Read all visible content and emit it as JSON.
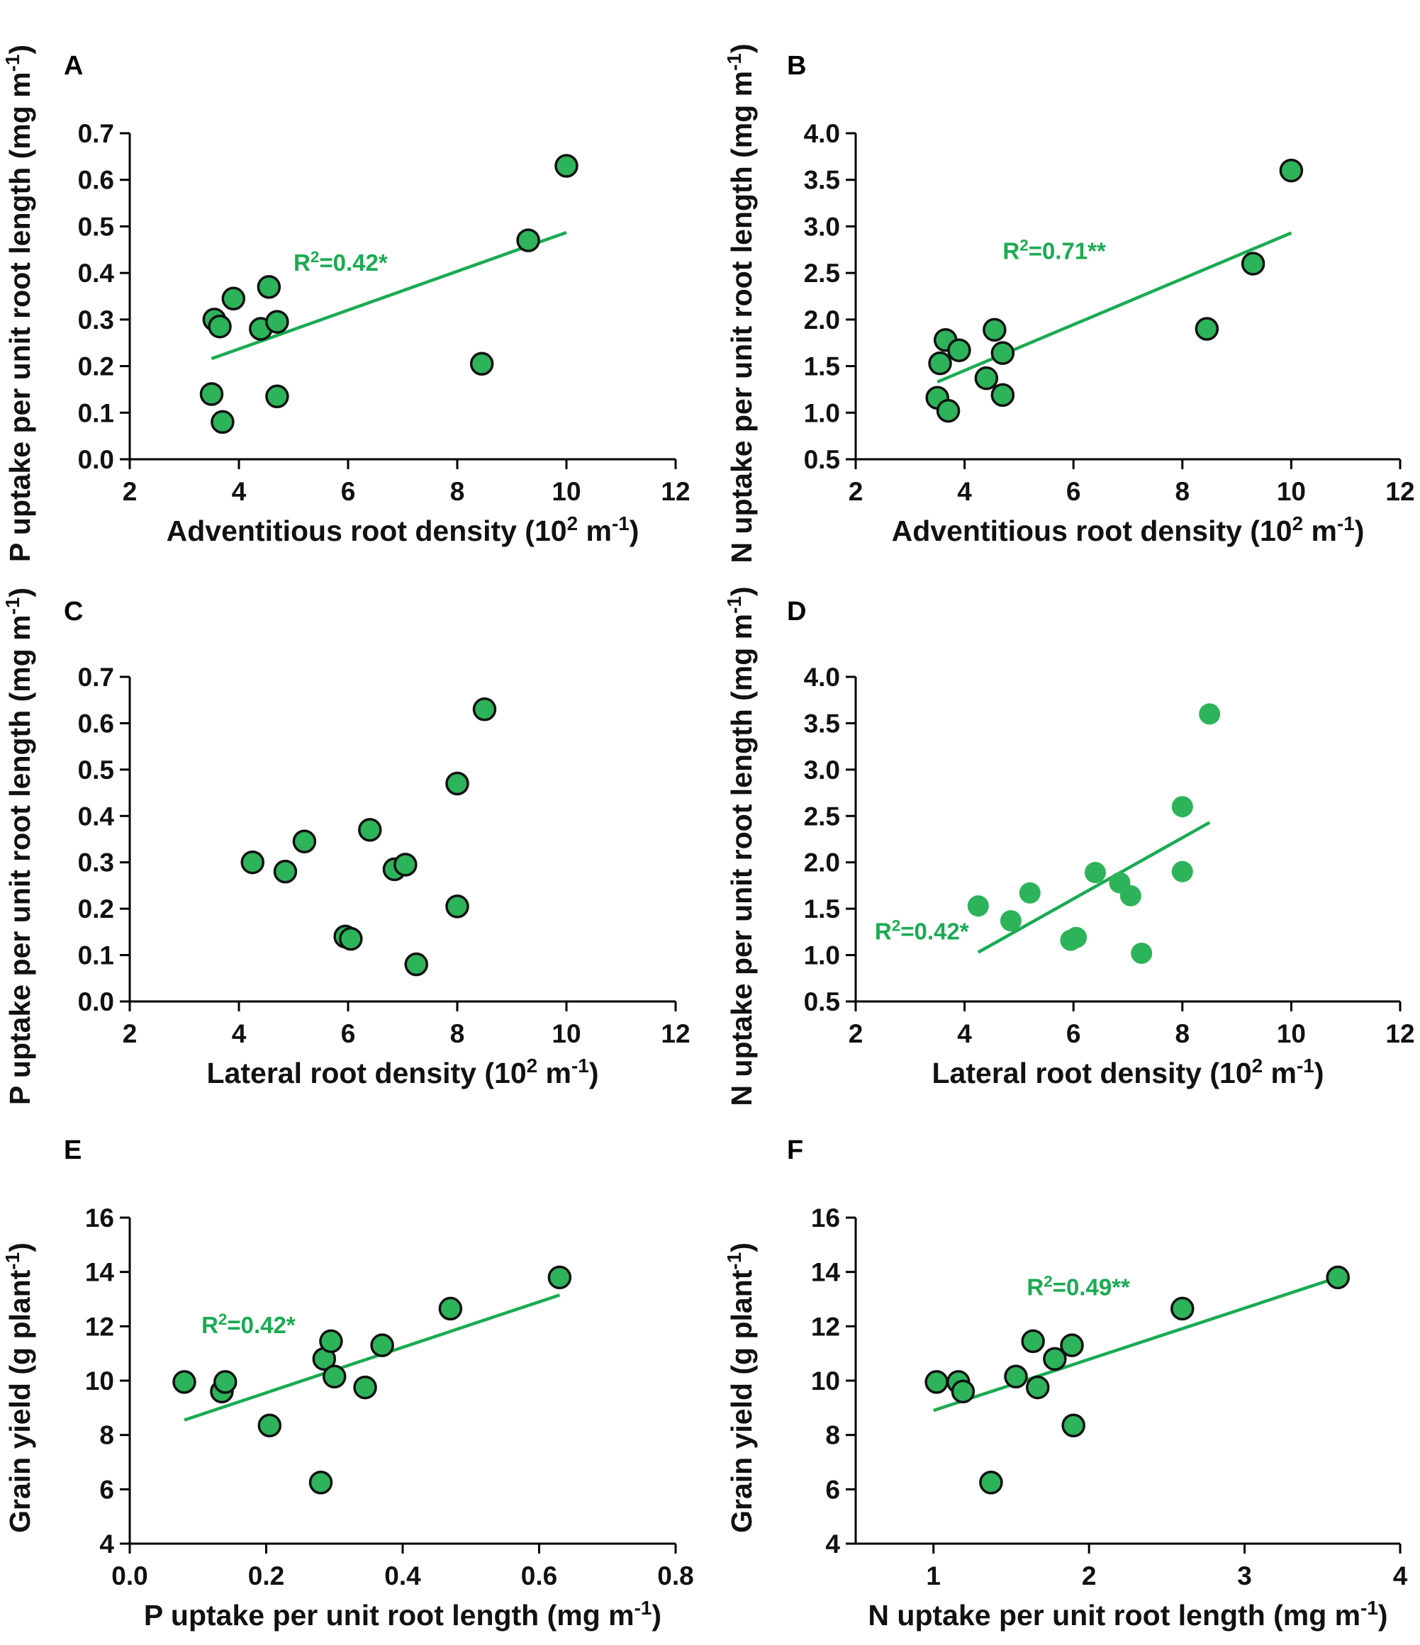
{
  "colors": {
    "point": "#2db35a",
    "line": "#1aab52",
    "axis": "#000000"
  },
  "chart_data": [
    {
      "id": "A",
      "type": "scatter",
      "panel_label": "A",
      "xlabel": {
        "main": "Adventitious root density (10",
        "sup1": "2",
        "mid": " m",
        "sup2": "-1",
        "end": ")"
      },
      "ylabel": {
        "main": "P uptake per unit root length (mg m",
        "sup": "-1",
        "end": ")"
      },
      "xlim": [
        2,
        12
      ],
      "ylim": [
        0,
        0.7
      ],
      "xticks": [
        "2",
        "4",
        "6",
        "8",
        "10",
        "12"
      ],
      "yticks": [
        "0.0",
        "0.1",
        "0.2",
        "0.3",
        "0.4",
        "0.5",
        "0.6",
        "0.7"
      ],
      "xtick_values": [
        2,
        4,
        6,
        8,
        10,
        12
      ],
      "ytick_values": [
        0,
        0.1,
        0.2,
        0.3,
        0.4,
        0.5,
        0.6,
        0.7
      ],
      "points": [
        [
          3.5,
          0.14
        ],
        [
          3.55,
          0.3
        ],
        [
          3.65,
          0.285
        ],
        [
          3.7,
          0.08
        ],
        [
          3.9,
          0.345
        ],
        [
          4.4,
          0.28
        ],
        [
          4.55,
          0.37
        ],
        [
          4.7,
          0.295
        ],
        [
          4.7,
          0.135
        ],
        [
          8.45,
          0.205
        ],
        [
          9.3,
          0.47
        ],
        [
          10.0,
          0.63
        ]
      ],
      "point_style": "outlined",
      "fit": {
        "x": [
          3.5,
          10.0
        ],
        "y": [
          0.216,
          0.487
        ]
      },
      "annotation": {
        "pre": "R",
        "sup": "2",
        "post": "=0.42*",
        "x": 5.0,
        "y": 0.405
      }
    },
    {
      "id": "B",
      "type": "scatter",
      "panel_label": "B",
      "xlabel": {
        "main": "Adventitious root density (10",
        "sup1": "2",
        "mid": " m",
        "sup2": "-1",
        "end": ")"
      },
      "ylabel": {
        "main": "N uptake per unit root length (mg m",
        "sup": "-1",
        "end": ")"
      },
      "xlim": [
        2,
        12
      ],
      "ylim": [
        0.5,
        4.0
      ],
      "xticks": [
        "2",
        "4",
        "6",
        "8",
        "10",
        "12"
      ],
      "yticks": [
        "0.5",
        "1.0",
        "1.5",
        "2.0",
        "2.5",
        "3.0",
        "3.5",
        "4.0"
      ],
      "xtick_values": [
        2,
        4,
        6,
        8,
        10,
        12
      ],
      "ytick_values": [
        0.5,
        1.0,
        1.5,
        2.0,
        2.5,
        3.0,
        3.5,
        4.0
      ],
      "points": [
        [
          3.5,
          1.16
        ],
        [
          3.55,
          1.53
        ],
        [
          3.65,
          1.78
        ],
        [
          3.7,
          1.02
        ],
        [
          3.9,
          1.67
        ],
        [
          4.4,
          1.37
        ],
        [
          4.55,
          1.89
        ],
        [
          4.7,
          1.64
        ],
        [
          4.7,
          1.19
        ],
        [
          8.45,
          1.9
        ],
        [
          9.3,
          2.6
        ],
        [
          10.0,
          3.6
        ]
      ],
      "point_style": "outlined",
      "fit": {
        "x": [
          3.5,
          10.0
        ],
        "y": [
          1.33,
          2.93
        ]
      },
      "annotation": {
        "pre": "R",
        "sup": "2",
        "post": "=0.71**",
        "x": 4.7,
        "y": 2.65
      }
    },
    {
      "id": "C",
      "type": "scatter",
      "panel_label": "C",
      "xlabel": {
        "main": "Lateral root density (10",
        "sup1": "2",
        "mid": " m",
        "sup2": "-1",
        "end": ")"
      },
      "ylabel": {
        "main": "P uptake per unit root length (mg m",
        "sup": "-1",
        "end": ")"
      },
      "xlim": [
        2,
        12
      ],
      "ylim": [
        0,
        0.7
      ],
      "xticks": [
        "2",
        "4",
        "6",
        "8",
        "10",
        "12"
      ],
      "yticks": [
        "0.0",
        "0.1",
        "0.2",
        "0.3",
        "0.4",
        "0.5",
        "0.6",
        "0.7"
      ],
      "xtick_values": [
        2,
        4,
        6,
        8,
        10,
        12
      ],
      "ytick_values": [
        0,
        0.1,
        0.2,
        0.3,
        0.4,
        0.5,
        0.6,
        0.7
      ],
      "points": [
        [
          4.25,
          0.3
        ],
        [
          4.85,
          0.28
        ],
        [
          5.2,
          0.345
        ],
        [
          5.95,
          0.14
        ],
        [
          6.05,
          0.135
        ],
        [
          6.4,
          0.37
        ],
        [
          6.85,
          0.285
        ],
        [
          7.05,
          0.295
        ],
        [
          7.25,
          0.08
        ],
        [
          8.0,
          0.205
        ],
        [
          8.0,
          0.47
        ],
        [
          8.5,
          0.63
        ]
      ],
      "point_style": "outlined",
      "fit": null,
      "annotation": null
    },
    {
      "id": "D",
      "type": "scatter",
      "panel_label": "D",
      "xlabel": {
        "main": "Lateral root density (10",
        "sup1": "2",
        "mid": " m",
        "sup2": "-1",
        "end": ")"
      },
      "ylabel": {
        "main": "N uptake per unit root length (mg m",
        "sup": "-1",
        "end": ")"
      },
      "xlim": [
        2,
        12
      ],
      "ylim": [
        0.5,
        4.0
      ],
      "xticks": [
        "2",
        "4",
        "6",
        "8",
        "10",
        "12"
      ],
      "yticks": [
        "0.5",
        "1.0",
        "1.5",
        "2.0",
        "2.5",
        "3.0",
        "3.5",
        "4.0"
      ],
      "xtick_values": [
        2,
        4,
        6,
        8,
        10,
        12
      ],
      "ytick_values": [
        0.5,
        1.0,
        1.5,
        2.0,
        2.5,
        3.0,
        3.5,
        4.0
      ],
      "points": [
        [
          4.25,
          1.53
        ],
        [
          4.85,
          1.37
        ],
        [
          5.2,
          1.67
        ],
        [
          5.95,
          1.16
        ],
        [
          6.05,
          1.19
        ],
        [
          6.4,
          1.89
        ],
        [
          6.85,
          1.78
        ],
        [
          7.05,
          1.64
        ],
        [
          7.25,
          1.02
        ],
        [
          8.0,
          1.9
        ],
        [
          8.0,
          2.6
        ],
        [
          8.5,
          3.6
        ]
      ],
      "point_style": "filled",
      "fit": {
        "x": [
          4.25,
          8.5
        ],
        "y": [
          1.03,
          2.43
        ]
      },
      "annotation": {
        "pre": "R",
        "sup": "2",
        "post": "=0.42*",
        "x": 2.35,
        "y": 1.17
      }
    },
    {
      "id": "E",
      "type": "scatter",
      "panel_label": "E",
      "xlabel": {
        "main": "P uptake per unit root length (mg m",
        "sup1": "",
        "mid": "",
        "sup2": "-1",
        "end": ")"
      },
      "ylabel": {
        "main": "Grain yield (g plant",
        "sup": "-1",
        "end": ")"
      },
      "xlim": [
        0,
        0.8
      ],
      "ylim": [
        4,
        16
      ],
      "xticks": [
        "0.0",
        "0.2",
        "0.4",
        "0.6",
        "0.8"
      ],
      "yticks": [
        "4",
        "6",
        "8",
        "10",
        "12",
        "14",
        "16"
      ],
      "xtick_values": [
        0,
        0.2,
        0.4,
        0.6,
        0.8
      ],
      "ytick_values": [
        4,
        6,
        8,
        10,
        12,
        14,
        16
      ],
      "points": [
        [
          0.08,
          9.95
        ],
        [
          0.135,
          9.6
        ],
        [
          0.14,
          9.95
        ],
        [
          0.205,
          8.35
        ],
        [
          0.28,
          6.25
        ],
        [
          0.285,
          10.8
        ],
        [
          0.295,
          11.45
        ],
        [
          0.3,
          10.15
        ],
        [
          0.345,
          9.75
        ],
        [
          0.37,
          11.3
        ],
        [
          0.47,
          12.65
        ],
        [
          0.63,
          13.8
        ]
      ],
      "point_style": "outlined",
      "fit": {
        "x": [
          0.08,
          0.63
        ],
        "y": [
          8.55,
          13.15
        ]
      },
      "annotation": {
        "pre": "R",
        "sup": "2",
        "post": "=0.42*",
        "x": 0.105,
        "y": 11.75
      }
    },
    {
      "id": "F",
      "type": "scatter",
      "panel_label": "F",
      "xlabel": {
        "main": "N uptake per unit root length (mg m",
        "sup1": "",
        "mid": "",
        "sup2": "-1",
        "end": ")"
      },
      "ylabel": {
        "main": "Grain yield (g plant",
        "sup": "-1",
        "end": ")"
      },
      "xlim": [
        0.5,
        4
      ],
      "ylim": [
        4,
        16
      ],
      "xticks": [
        "1",
        "2",
        "3",
        "4"
      ],
      "yticks": [
        "4",
        "6",
        "8",
        "10",
        "12",
        "14",
        "16"
      ],
      "xtick_values": [
        1,
        2,
        3,
        4
      ],
      "ytick_values": [
        4,
        6,
        8,
        10,
        12,
        14,
        16
      ],
      "points": [
        [
          1.02,
          9.95
        ],
        [
          1.16,
          9.95
        ],
        [
          1.19,
          9.6
        ],
        [
          1.37,
          6.25
        ],
        [
          1.53,
          10.15
        ],
        [
          1.64,
          11.45
        ],
        [
          1.67,
          9.75
        ],
        [
          1.78,
          10.8
        ],
        [
          1.89,
          11.3
        ],
        [
          1.9,
          8.35
        ],
        [
          2.6,
          12.65
        ],
        [
          3.6,
          13.8
        ]
      ],
      "point_style": "outlined",
      "fit": {
        "x": [
          1.0,
          3.6
        ],
        "y": [
          8.9,
          13.8
        ]
      },
      "annotation": {
        "pre": "R",
        "sup": "2",
        "post": "=0.49**",
        "x": 1.6,
        "y": 13.15
      }
    }
  ]
}
